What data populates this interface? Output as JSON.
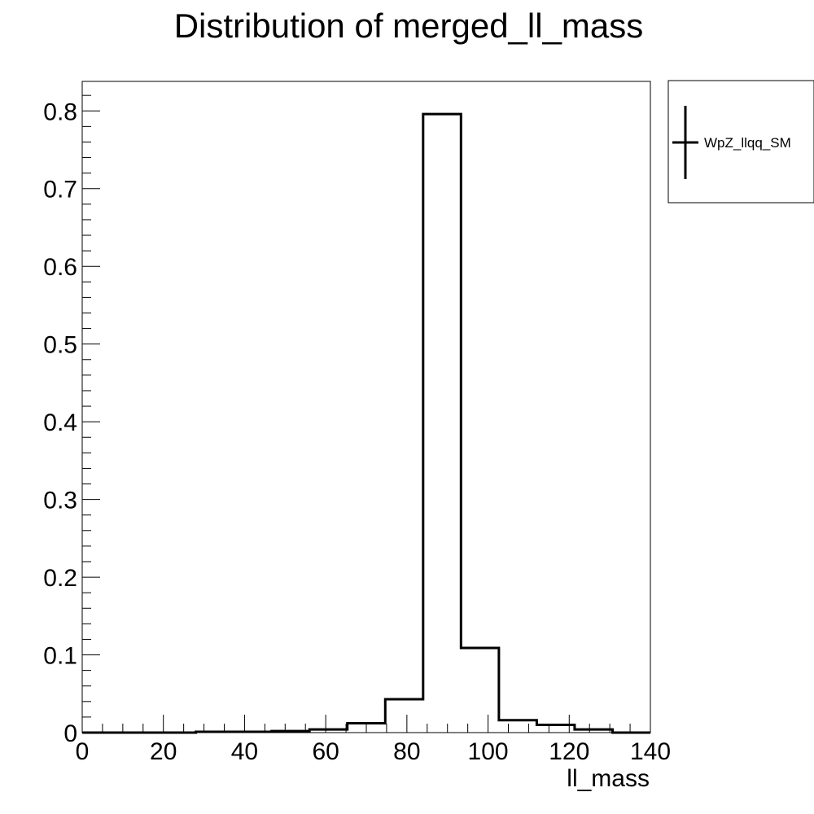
{
  "chart_data": {
    "type": "histogram",
    "title": "Distribution of merged_ll_mass",
    "xlabel": "ll_mass",
    "ylabel": "",
    "xlim": [
      0,
      140
    ],
    "ylim": [
      0,
      0.838
    ],
    "x_ticks": [
      0,
      20,
      40,
      60,
      80,
      100,
      120,
      140
    ],
    "y_ticks": [
      0,
      0.1,
      0.2,
      0.3,
      0.4,
      0.5,
      0.6,
      0.7,
      0.8
    ],
    "y_tick_labels": [
      "0",
      "0.1",
      "0.2",
      "0.3",
      "0.4",
      "0.5",
      "0.6",
      "0.7",
      "0.8"
    ],
    "legend_position": "top-right, outside plot",
    "series": [
      {
        "name": "WpZ_llqq_SM",
        "color": "#000000",
        "bin_edges": [
          0,
          9.33,
          18.67,
          28,
          37.33,
          46.67,
          56,
          65.33,
          74.67,
          84,
          93.33,
          102.67,
          112,
          121.33,
          130.67,
          140
        ],
        "values": [
          0.0,
          0.0,
          0.0,
          0.001,
          0.001,
          0.002,
          0.004,
          0.012,
          0.043,
          0.796,
          0.109,
          0.016,
          0.01,
          0.004,
          0.0
        ]
      }
    ]
  }
}
